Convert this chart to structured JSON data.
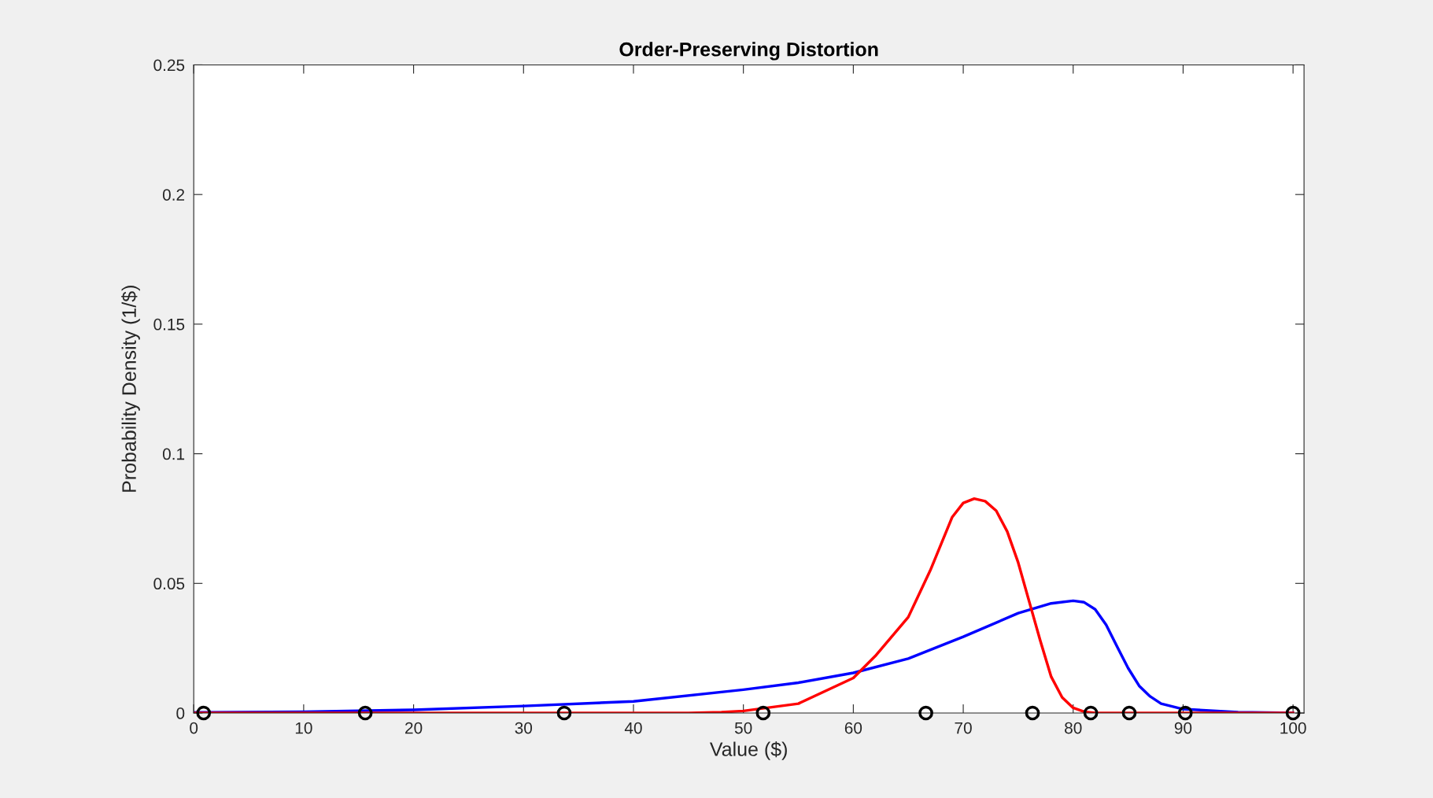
{
  "chart_data": {
    "type": "line",
    "title": "Order-Preserving Distortion",
    "xlabel": "Value ($)",
    "ylabel": "Probability Density (1/$)",
    "xlim": [
      0,
      101
    ],
    "xticks": [
      0,
      10,
      20,
      30,
      40,
      50,
      60,
      70,
      80,
      90,
      100
    ],
    "ylim": [
      0,
      0.25
    ],
    "yticks": [
      0,
      0.05,
      0.1,
      0.15,
      0.2,
      0.25
    ],
    "grid": false,
    "legend": false,
    "line_style": "solid",
    "marker": "none",
    "series": [
      {
        "color": "#0000ff",
        "x": [
          0,
          10,
          20,
          30,
          40,
          50,
          55,
          60,
          65,
          70,
          75,
          78,
          80,
          81,
          82,
          83,
          84,
          85,
          86,
          87,
          88,
          90,
          95,
          100
        ],
        "values": [
          0.0002,
          0.0005,
          0.0012,
          0.0027,
          0.0045,
          0.009,
          0.0117,
          0.0155,
          0.021,
          0.0294,
          0.0385,
          0.0423,
          0.0433,
          0.0427,
          0.04,
          0.034,
          0.0256,
          0.0173,
          0.0105,
          0.0064,
          0.0036,
          0.0015,
          0.0003,
          0
        ]
      },
      {
        "color": "#ff0000",
        "x": [
          0,
          20,
          40,
          45,
          48,
          50,
          55,
          60,
          62,
          65,
          67,
          69,
          70,
          71,
          72,
          73,
          74,
          75,
          76,
          77,
          78,
          79,
          80,
          81,
          82,
          90,
          100
        ],
        "values": [
          0,
          0,
          0,
          0,
          0.0003,
          0.0008,
          0.0036,
          0.0135,
          0.022,
          0.037,
          0.055,
          0.0756,
          0.081,
          0.0827,
          0.0817,
          0.078,
          0.07,
          0.058,
          0.043,
          0.028,
          0.014,
          0.006,
          0.002,
          0.0005,
          0,
          0,
          0
        ]
      },
      {
        "type": "scatter",
        "color": "#000000",
        "marker": "circle",
        "x": [
          0.9,
          15.6,
          33.7,
          51.8,
          66.6,
          76.3,
          81.6,
          85.1,
          90.2,
          100
        ],
        "values": [
          0,
          0,
          0,
          0,
          0,
          0,
          0,
          0,
          0,
          0
        ]
      }
    ]
  }
}
